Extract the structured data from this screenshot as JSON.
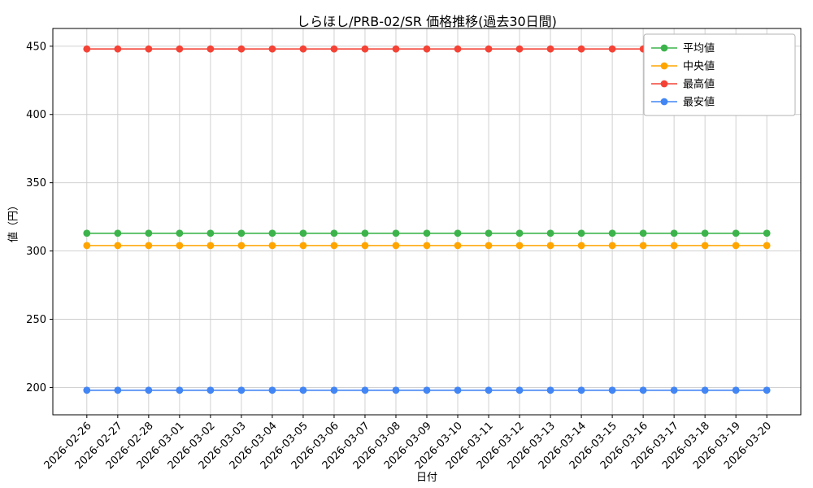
{
  "chart_data": {
    "type": "line",
    "title": "しらほし/PRB-02/SR 価格推移(過去30日間)",
    "xlabel": "日付",
    "ylabel": "値（円）",
    "x": [
      "2026-02-26",
      "2026-02-27",
      "2026-02-28",
      "2026-03-01",
      "2026-03-02",
      "2026-03-03",
      "2026-03-04",
      "2026-03-05",
      "2026-03-06",
      "2026-03-07",
      "2026-03-08",
      "2026-03-09",
      "2026-03-10",
      "2026-03-11",
      "2026-03-12",
      "2026-03-13",
      "2026-03-14",
      "2026-03-15",
      "2026-03-16",
      "2026-03-17",
      "2026-03-18",
      "2026-03-19",
      "2026-03-20"
    ],
    "series": [
      {
        "name": "平均値",
        "color": "#3cb44b",
        "values": [
          313,
          313,
          313,
          313,
          313,
          313,
          313,
          313,
          313,
          313,
          313,
          313,
          313,
          313,
          313,
          313,
          313,
          313,
          313,
          313,
          313,
          313,
          313
        ]
      },
      {
        "name": "中央値",
        "color": "#ffa500",
        "values": [
          304,
          304,
          304,
          304,
          304,
          304,
          304,
          304,
          304,
          304,
          304,
          304,
          304,
          304,
          304,
          304,
          304,
          304,
          304,
          304,
          304,
          304,
          304
        ]
      },
      {
        "name": "最高値",
        "color": "#f44336",
        "values": [
          448,
          448,
          448,
          448,
          448,
          448,
          448,
          448,
          448,
          448,
          448,
          448,
          448,
          448,
          448,
          448,
          448,
          448,
          448,
          448,
          448,
          448,
          448
        ]
      },
      {
        "name": "最安値",
        "color": "#4285f4",
        "values": [
          198,
          198,
          198,
          198,
          198,
          198,
          198,
          198,
          198,
          198,
          198,
          198,
          198,
          198,
          198,
          198,
          198,
          198,
          198,
          198,
          198,
          198,
          198
        ]
      }
    ],
    "ylim": [
      180,
      463
    ],
    "yticks": [
      200,
      250,
      300,
      350,
      400,
      450
    ],
    "grid": true,
    "grid_color": "#cccccc",
    "legend_position": "upper-right"
  }
}
